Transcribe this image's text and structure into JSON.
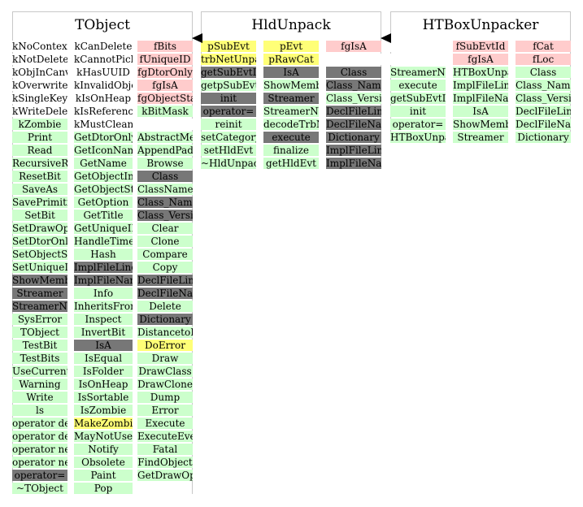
{
  "colors": {
    "method": "#ccffcc",
    "inherited": "#777777",
    "data_member": "#ffcccc",
    "highlight": "#ffff77"
  },
  "classes": [
    {
      "title": "TObject",
      "columns": [
        [
          {
            "t": "kNoContextMenu",
            "c": "w"
          },
          {
            "t": "kNotDeleted",
            "c": "w"
          },
          {
            "t": "kObjInCanvas",
            "c": "w"
          },
          {
            "t": "kOverwrite",
            "c": "w"
          },
          {
            "t": "kSingleKey",
            "c": "w"
          },
          {
            "t": "kWriteDelete",
            "c": "w"
          },
          {
            "t": "kZombie",
            "c": "g"
          },
          {
            "t": "Print",
            "c": "g"
          },
          {
            "t": "Read",
            "c": "g"
          },
          {
            "t": "RecursiveRemove",
            "c": "g"
          },
          {
            "t": "ResetBit",
            "c": "g"
          },
          {
            "t": "SaveAs",
            "c": "g"
          },
          {
            "t": "SavePrimitive",
            "c": "g"
          },
          {
            "t": "SetBit",
            "c": "g"
          },
          {
            "t": "SetDrawOption",
            "c": "g"
          },
          {
            "t": "SetDtorOnly",
            "c": "g"
          },
          {
            "t": "SetObjectStat",
            "c": "g"
          },
          {
            "t": "SetUniqueID",
            "c": "g"
          },
          {
            "t": "ShowMembers",
            "c": "d"
          },
          {
            "t": "Streamer",
            "c": "d"
          },
          {
            "t": "StreamerNVirtual",
            "c": "d"
          },
          {
            "t": "SysError",
            "c": "g"
          },
          {
            "t": "TObject",
            "c": "g"
          },
          {
            "t": "TestBit",
            "c": "g"
          },
          {
            "t": "TestBits",
            "c": "g"
          },
          {
            "t": "UseCurrentStyle",
            "c": "g"
          },
          {
            "t": "Warning",
            "c": "g"
          },
          {
            "t": "Write",
            "c": "g"
          },
          {
            "t": "ls",
            "c": "g"
          },
          {
            "t": "operator delete",
            "c": "g"
          },
          {
            "t": "operator delete[]",
            "c": "g"
          },
          {
            "t": "operator new",
            "c": "g"
          },
          {
            "t": "operator new[]",
            "c": "g"
          },
          {
            "t": "operator=",
            "c": "d"
          },
          {
            "t": "~TObject",
            "c": "g"
          }
        ],
        [
          {
            "t": "kCanDelete",
            "c": "w"
          },
          {
            "t": "kCannotPick",
            "c": "w"
          },
          {
            "t": "kHasUUID",
            "c": "w"
          },
          {
            "t": "kInvalidObject",
            "c": "w"
          },
          {
            "t": "kIsOnHeap",
            "c": "w"
          },
          {
            "t": "kIsReferenced",
            "c": "w"
          },
          {
            "t": "kMustCleanup",
            "c": "w"
          },
          {
            "t": "GetDtorOnly",
            "c": "g"
          },
          {
            "t": "GetIconName",
            "c": "g"
          },
          {
            "t": "GetName",
            "c": "g"
          },
          {
            "t": "GetObjectInfo",
            "c": "g"
          },
          {
            "t": "GetObjectStat",
            "c": "g"
          },
          {
            "t": "GetOption",
            "c": "g"
          },
          {
            "t": "GetTitle",
            "c": "g"
          },
          {
            "t": "GetUniqueID",
            "c": "g"
          },
          {
            "t": "HandleTimer",
            "c": "g"
          },
          {
            "t": "Hash",
            "c": "g"
          },
          {
            "t": "ImplFileLine",
            "c": "d"
          },
          {
            "t": "ImplFileName",
            "c": "d"
          },
          {
            "t": "Info",
            "c": "g"
          },
          {
            "t": "InheritsFrom",
            "c": "g"
          },
          {
            "t": "Inspect",
            "c": "g"
          },
          {
            "t": "InvertBit",
            "c": "g"
          },
          {
            "t": "IsA",
            "c": "d"
          },
          {
            "t": "IsEqual",
            "c": "g"
          },
          {
            "t": "IsFolder",
            "c": "g"
          },
          {
            "t": "IsOnHeap",
            "c": "g"
          },
          {
            "t": "IsSortable",
            "c": "g"
          },
          {
            "t": "IsZombie",
            "c": "g"
          },
          {
            "t": "MakeZombie",
            "c": "y"
          },
          {
            "t": "MayNotUse",
            "c": "g"
          },
          {
            "t": "Notify",
            "c": "g"
          },
          {
            "t": "Obsolete",
            "c": "g"
          },
          {
            "t": "Paint",
            "c": "g"
          },
          {
            "t": "Pop",
            "c": "g"
          }
        ],
        [
          {
            "t": "fBits",
            "c": "p"
          },
          {
            "t": "fUniqueID",
            "c": "p"
          },
          {
            "t": "fgDtorOnly",
            "c": "p"
          },
          {
            "t": "fgIsA",
            "c": "p"
          },
          {
            "t": "fgObjectStat",
            "c": "p"
          },
          {
            "t": "kBitMask",
            "c": "g"
          },
          {
            "t": "",
            "c": "w"
          },
          {
            "t": "AbstractMethod",
            "c": "g"
          },
          {
            "t": "AppendPad",
            "c": "g"
          },
          {
            "t": "Browse",
            "c": "g"
          },
          {
            "t": "Class",
            "c": "d"
          },
          {
            "t": "ClassName",
            "c": "g"
          },
          {
            "t": "Class_Name",
            "c": "d"
          },
          {
            "t": "Class_Version",
            "c": "d"
          },
          {
            "t": "Clear",
            "c": "g"
          },
          {
            "t": "Clone",
            "c": "g"
          },
          {
            "t": "Compare",
            "c": "g"
          },
          {
            "t": "Copy",
            "c": "g"
          },
          {
            "t": "DeclFileLine",
            "c": "d"
          },
          {
            "t": "DeclFileName",
            "c": "d"
          },
          {
            "t": "Delete",
            "c": "g"
          },
          {
            "t": "Dictionary",
            "c": "d"
          },
          {
            "t": "DistancetoPrimitive",
            "c": "g"
          },
          {
            "t": "DoError",
            "c": "y"
          },
          {
            "t": "Draw",
            "c": "g"
          },
          {
            "t": "DrawClass",
            "c": "g"
          },
          {
            "t": "DrawClone",
            "c": "g"
          },
          {
            "t": "Dump",
            "c": "g"
          },
          {
            "t": "Error",
            "c": "g"
          },
          {
            "t": "Execute",
            "c": "g"
          },
          {
            "t": "ExecuteEvent",
            "c": "g"
          },
          {
            "t": "Fatal",
            "c": "g"
          },
          {
            "t": "FindObject",
            "c": "g"
          },
          {
            "t": "GetDrawOption",
            "c": "g"
          }
        ]
      ]
    },
    {
      "title": "HldUnpack",
      "columns": [
        [
          {
            "t": "pSubEvt",
            "c": "y"
          },
          {
            "t": "trbNetUnpacker",
            "c": "y"
          },
          {
            "t": "getSubEvtId",
            "c": "d"
          },
          {
            "t": "getpSubEvt",
            "c": "g"
          },
          {
            "t": "init",
            "c": "d"
          },
          {
            "t": "operator=",
            "c": "d"
          },
          {
            "t": "reinit",
            "c": "g"
          },
          {
            "t": "setCategory",
            "c": "g"
          },
          {
            "t": "setHldEvt",
            "c": "g"
          },
          {
            "t": "~HldUnpack",
            "c": "g"
          }
        ],
        [
          {
            "t": "pEvt",
            "c": "y"
          },
          {
            "t": "pRawCat",
            "c": "y"
          },
          {
            "t": "IsA",
            "c": "d"
          },
          {
            "t": "ShowMembers",
            "c": "g"
          },
          {
            "t": "Streamer",
            "c": "d"
          },
          {
            "t": "StreamerNVirtual",
            "c": "g"
          },
          {
            "t": "decodeTrbNet",
            "c": "g"
          },
          {
            "t": "execute",
            "c": "d"
          },
          {
            "t": "finalize",
            "c": "g"
          },
          {
            "t": "getHldEvt",
            "c": "g"
          }
        ],
        [
          {
            "t": "fgIsA",
            "c": "p"
          },
          {
            "t": "",
            "c": "w"
          },
          {
            "t": "Class",
            "c": "d"
          },
          {
            "t": "Class_Name",
            "c": "d"
          },
          {
            "t": "Class_Version",
            "c": "g"
          },
          {
            "t": "DeclFileLine",
            "c": "d"
          },
          {
            "t": "DeclFileName",
            "c": "d"
          },
          {
            "t": "Dictionary",
            "c": "d"
          },
          {
            "t": "ImplFileLine",
            "c": "d"
          },
          {
            "t": "ImplFileName",
            "c": "d"
          }
        ]
      ]
    },
    {
      "title": "HTBoxUnpacker",
      "columns": [
        [
          {
            "t": "",
            "c": "w"
          },
          {
            "t": "",
            "c": "w"
          },
          {
            "t": "StreamerNVirtual",
            "c": "g"
          },
          {
            "t": "execute",
            "c": "g"
          },
          {
            "t": "getSubEvtId",
            "c": "g"
          },
          {
            "t": "init",
            "c": "g"
          },
          {
            "t": "operator=",
            "c": "g"
          },
          {
            "t": "HTBoxUnpacker",
            "c": "g"
          }
        ],
        [
          {
            "t": "fSubEvtId",
            "c": "p"
          },
          {
            "t": "fgIsA",
            "c": "p"
          },
          {
            "t": "HTBoxUnpacker",
            "c": "g"
          },
          {
            "t": "ImplFileLine",
            "c": "g"
          },
          {
            "t": "ImplFileName",
            "c": "g"
          },
          {
            "t": "IsA",
            "c": "g"
          },
          {
            "t": "ShowMembers",
            "c": "g"
          },
          {
            "t": "Streamer",
            "c": "g"
          }
        ],
        [
          {
            "t": "fCat",
            "c": "p"
          },
          {
            "t": "fLoc",
            "c": "p"
          },
          {
            "t": "Class",
            "c": "g"
          },
          {
            "t": "Class_Name",
            "c": "g"
          },
          {
            "t": "Class_Version",
            "c": "g"
          },
          {
            "t": "DeclFileLine",
            "c": "g"
          },
          {
            "t": "DeclFileName",
            "c": "g"
          },
          {
            "t": "Dictionary",
            "c": "g"
          }
        ]
      ]
    }
  ]
}
